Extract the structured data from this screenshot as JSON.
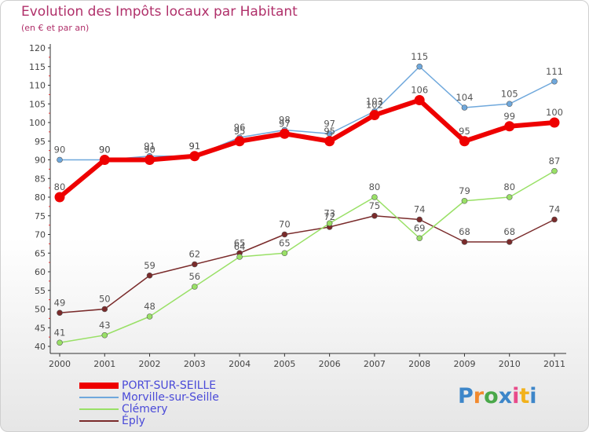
{
  "chart_data": {
    "type": "line",
    "title": "Evolution des Impôts locaux par Habitant",
    "subtitle": "(en € et par an)",
    "x": [
      "2000",
      "2001",
      "2002",
      "2003",
      "2004",
      "2005",
      "2006",
      "2007",
      "2008",
      "2009",
      "2010",
      "2011"
    ],
    "yticks": [
      "120",
      "115",
      "110",
      "105",
      "100",
      "95",
      "90",
      "85",
      "80",
      "75",
      "70",
      "65",
      "60",
      "55",
      "50",
      "45",
      "40"
    ],
    "ylim": [
      40,
      120
    ],
    "grid": false,
    "legend_position": "bottom-left",
    "series": [
      {
        "name": "PORT-SUR-SEILLE",
        "color": "#ee0000",
        "values": [
          80,
          90,
          90,
          91,
          95,
          97,
          95,
          102,
          106,
          95,
          99,
          100
        ]
      },
      {
        "name": "Morville-sur-Seille",
        "color": "#6fa8dc",
        "values": [
          90,
          90,
          91,
          91,
          96,
          98,
          97,
          103,
          115,
          104,
          105,
          111
        ]
      },
      {
        "name": "Clémery",
        "color": "#99e066",
        "values": [
          41,
          43,
          48,
          56,
          64,
          65,
          73,
          80,
          69,
          79,
          80,
          87
        ]
      },
      {
        "name": "Éply",
        "color": "#7a2b2b",
        "values": [
          49,
          50,
          59,
          62,
          65,
          70,
          72,
          75,
          74,
          68,
          68,
          74
        ]
      }
    ]
  },
  "logo": {
    "letters": [
      "P",
      "r",
      "o",
      "x",
      "i",
      "t",
      "i"
    ],
    "colors": [
      "#3d86c9",
      "#f28a2e",
      "#4aa84a",
      "#3d86c9",
      "#e84b8a",
      "#f2b21c",
      "#3d86c9"
    ]
  }
}
